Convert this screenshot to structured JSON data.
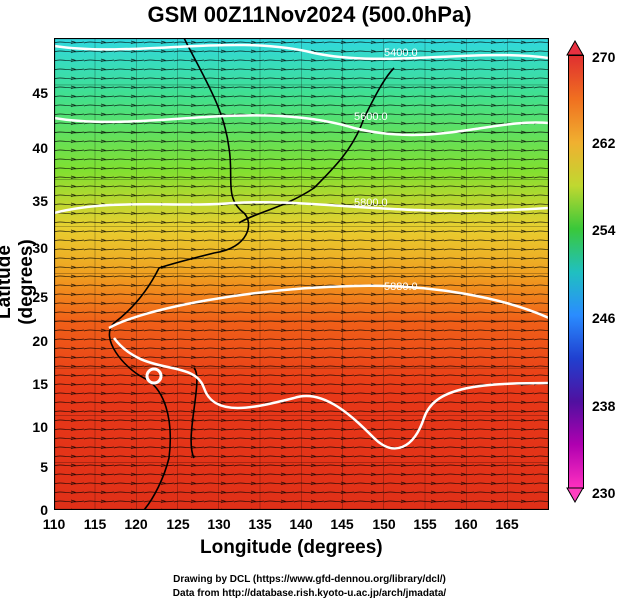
{
  "title": "GSM 00Z11Nov2024 (500.0hPa)",
  "xlabel": "Longitude (degrees)",
  "ylabel": "Latitude  (degrees)",
  "xticks": [
    "110",
    "115",
    "120",
    "125",
    "130",
    "135",
    "140",
    "145",
    "150",
    "155",
    "160",
    "165"
  ],
  "yticks": [
    "0",
    "5",
    "10",
    "15",
    "20",
    "25",
    "30",
    "35",
    "40",
    "45"
  ],
  "colorbar_ticks": [
    "270",
    "262",
    "254",
    "246",
    "238",
    "230"
  ],
  "contour_labels": [
    "5400.0",
    "5600.0",
    "5800.0",
    "5880.0"
  ],
  "credit_line1": "Drawing by DCL (https://www.gfd-dennou.org/library/dcl/)",
  "credit_line2": "Data from http://database.rish.kyoto-u.ac.jp/arch/jmadata/",
  "colors": {
    "warm": "#e83818",
    "mid": "#f0b030",
    "cool": "#30d0d0",
    "contour": "#ffffff"
  }
}
